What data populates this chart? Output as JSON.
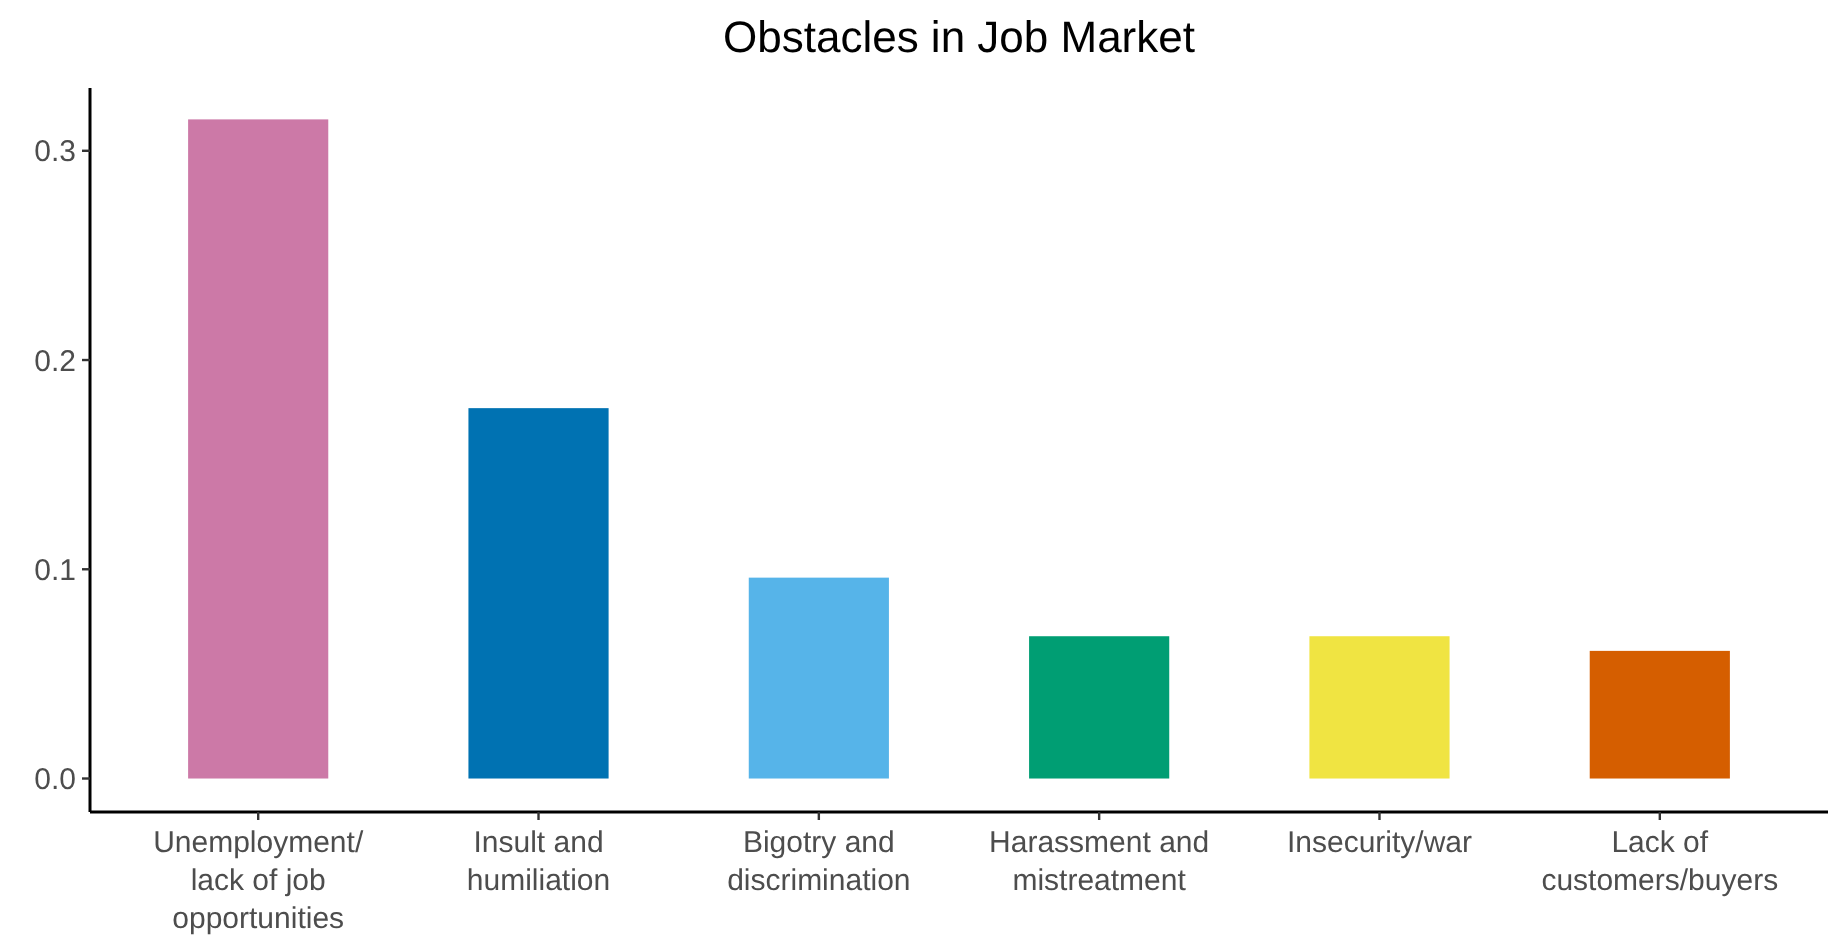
{
  "chart_data": {
    "type": "bar",
    "title": "Obstacles in Job Market",
    "categories": [
      "Unemployment/\nlack of job\nopportunities",
      "Insult and\nhumiliation",
      "Bigotry and\ndiscrimination",
      "Harassment and\nmistreatment",
      "Insecurity/war",
      "Lack of\ncustomers/buyers"
    ],
    "values": [
      0.315,
      0.177,
      0.096,
      0.068,
      0.068,
      0.061
    ],
    "colors": [
      "#cc79a7",
      "#0072b2",
      "#56b4e9",
      "#009e73",
      "#f0e442",
      "#d55e00"
    ],
    "ylim": [
      -0.016,
      0.33
    ],
    "yticks": [
      {
        "value": 0,
        "label": "0.0"
      },
      0.1,
      0.2,
      0.3
    ],
    "grid": false
  }
}
